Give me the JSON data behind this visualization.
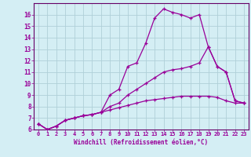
{
  "xlabel": "Windchill (Refroidissement éolien,°C)",
  "bg_color": "#d4eef4",
  "grid_color": "#b0d0d8",
  "line_color": "#990099",
  "spine_color": "#660066",
  "xlim": [
    -0.5,
    23.5
  ],
  "ylim": [
    6,
    17
  ],
  "xticks": [
    0,
    1,
    2,
    3,
    4,
    5,
    6,
    7,
    8,
    9,
    10,
    11,
    12,
    13,
    14,
    15,
    16,
    17,
    18,
    19,
    20,
    21,
    22,
    23
  ],
  "yticks": [
    6,
    7,
    8,
    9,
    10,
    11,
    12,
    13,
    14,
    15,
    16
  ],
  "curve1_x": [
    0,
    1,
    2,
    3,
    4,
    5,
    6,
    7,
    8,
    9,
    10,
    11,
    12,
    13,
    14,
    15,
    16,
    17,
    18,
    19,
    20,
    21,
    22,
    23
  ],
  "curve1_y": [
    6.5,
    6.0,
    6.3,
    6.8,
    7.0,
    7.2,
    7.3,
    7.5,
    9.0,
    9.5,
    11.5,
    11.8,
    13.5,
    15.7,
    16.5,
    16.2,
    16.0,
    15.7,
    16.0,
    13.2,
    11.5,
    11.0,
    8.5,
    8.3
  ],
  "curve2_x": [
    0,
    1,
    2,
    3,
    4,
    5,
    6,
    7,
    8,
    9,
    10,
    11,
    12,
    13,
    14,
    15,
    16,
    17,
    18,
    19,
    20,
    21,
    22,
    23
  ],
  "curve2_y": [
    6.5,
    6.0,
    6.3,
    6.8,
    7.0,
    7.2,
    7.3,
    7.5,
    8.0,
    8.3,
    9.0,
    9.5,
    10.0,
    10.5,
    11.0,
    11.2,
    11.3,
    11.5,
    11.8,
    13.2,
    11.5,
    11.0,
    8.5,
    8.3
  ],
  "curve3_x": [
    0,
    1,
    2,
    3,
    4,
    5,
    6,
    7,
    8,
    9,
    10,
    11,
    12,
    13,
    14,
    15,
    16,
    17,
    18,
    19,
    20,
    21,
    22,
    23
  ],
  "curve3_y": [
    6.5,
    6.0,
    6.3,
    6.8,
    7.0,
    7.2,
    7.3,
    7.5,
    7.7,
    7.9,
    8.1,
    8.3,
    8.5,
    8.6,
    8.7,
    8.8,
    8.9,
    8.9,
    8.9,
    8.9,
    8.8,
    8.5,
    8.3,
    8.3
  ]
}
